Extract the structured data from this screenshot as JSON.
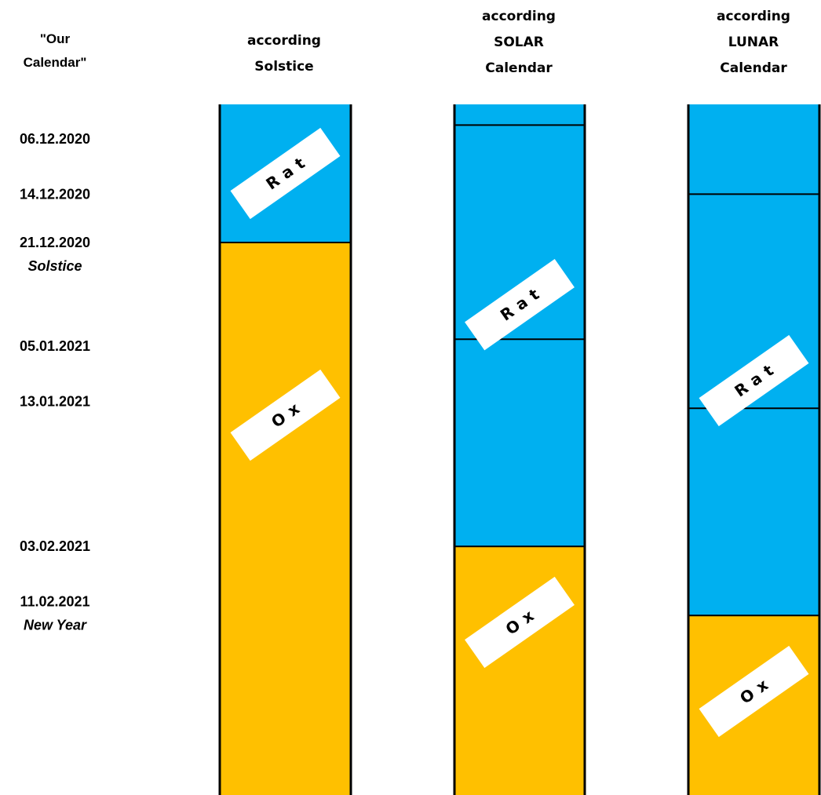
{
  "colors": {
    "rat": "#00B0F0",
    "ox": "#FFC000",
    "tag": "#FFFFFF",
    "line": "#000000"
  },
  "calendar_header": [
    "\"Our",
    "Calendar\""
  ],
  "dates": [
    {
      "date": "06.12.2020",
      "day": 0
    },
    {
      "date": "14.12.2020",
      "day": 8
    },
    {
      "date": "21.12.2020",
      "day": 15,
      "note": "Solstice"
    },
    {
      "date": "05.01.2021",
      "day": 30
    },
    {
      "date": "13.01.2021",
      "day": 38
    },
    {
      "date": "03.02.2021",
      "day": 59
    },
    {
      "date": "11.02.2021",
      "day": 67,
      "note": "New Year"
    }
  ],
  "columns": [
    {
      "id": "solstice",
      "header": [
        "according",
        "Solstice"
      ],
      "segments": [
        {
          "animal": "Rat",
          "from": -5,
          "to": 15
        },
        {
          "animal": "Ox",
          "from": 15,
          "to": 95
        }
      ],
      "dividers": [
        15
      ],
      "tags": [
        {
          "label": "Rat",
          "day": 5
        },
        {
          "label": "Ox",
          "day": 40
        }
      ]
    },
    {
      "id": "solar",
      "header": [
        "according",
        "SOLAR",
        "Calendar"
      ],
      "segments": [
        {
          "animal": "Rat",
          "from": -5,
          "to": 59
        },
        {
          "animal": "Ox",
          "from": 59,
          "to": 95
        }
      ],
      "dividers": [
        -2,
        29,
        59
      ],
      "tags": [
        {
          "label": "Rat",
          "day": 24
        },
        {
          "label": "Ox",
          "day": 70
        }
      ]
    },
    {
      "id": "lunar",
      "header": [
        "according",
        "LUNAR",
        "Calendar"
      ],
      "segments": [
        {
          "animal": "Rat",
          "from": -5,
          "to": 69
        },
        {
          "animal": "Ox",
          "from": 69,
          "to": 95
        }
      ],
      "dividers": [
        8,
        39,
        69
      ],
      "tags": [
        {
          "label": "Rat",
          "day": 35
        },
        {
          "label": "Ox",
          "day": 80
        }
      ]
    }
  ]
}
